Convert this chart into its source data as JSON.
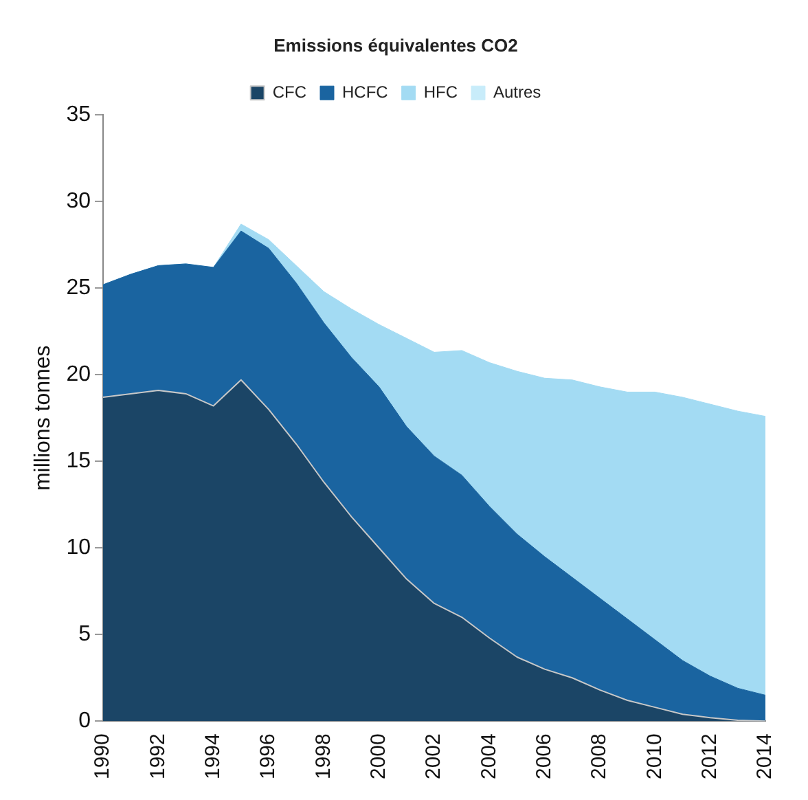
{
  "chart_data": {
    "type": "area",
    "title": "Emissions équivalentes CO2",
    "ylabel": "millions tonnes",
    "categories": [
      "1990",
      null,
      "1992",
      null,
      "1994",
      null,
      "1996",
      null,
      "1998",
      null,
      "2000",
      null,
      "2002",
      null,
      "2004",
      null,
      "2006",
      null,
      "2008",
      null,
      "2010",
      null,
      "2012",
      null,
      "2014"
    ],
    "stacked": true,
    "series": [
      {
        "name": "CFC",
        "color": "#1b4566",
        "values": [
          18.7,
          18.9,
          19.1,
          18.9,
          18.2,
          19.7,
          18.0,
          16.0,
          13.8,
          11.8,
          10.0,
          8.2,
          6.8,
          6.0,
          4.8,
          3.7,
          3.0,
          2.5,
          1.8,
          1.2,
          0.8,
          0.4,
          0.2,
          0.05,
          0
        ]
      },
      {
        "name": "HCFC",
        "color": "#1a64a0",
        "values": [
          6.5,
          6.9,
          7.2,
          7.5,
          8.0,
          8.6,
          9.3,
          9.3,
          9.2,
          9.2,
          9.3,
          8.8,
          8.5,
          8.2,
          7.6,
          7.1,
          6.5,
          5.8,
          5.3,
          4.7,
          3.9,
          3.1,
          2.4,
          1.85,
          1.5
        ]
      },
      {
        "name": "HFC",
        "color": "#a3dbf3",
        "values": [
          0,
          0,
          0,
          0,
          0,
          0.4,
          0.5,
          1.0,
          1.8,
          2.8,
          3.6,
          5.1,
          6.0,
          7.2,
          8.3,
          9.4,
          10.3,
          11.4,
          12.2,
          13.1,
          14.3,
          15.2,
          15.7,
          16.0,
          16.1
        ]
      },
      {
        "name": "Autres",
        "color": "#c8ecfa",
        "values": [
          null,
          null,
          null,
          null,
          null,
          null,
          null,
          null,
          null,
          null,
          null,
          null,
          null,
          null,
          null,
          null,
          null,
          null,
          null,
          null,
          null,
          null,
          null,
          null,
          null
        ]
      }
    ],
    "ylim": [
      0,
      35
    ],
    "yticks": [
      0,
      5,
      10,
      15,
      20,
      25,
      30,
      35
    ],
    "grid": false,
    "legend": "top",
    "marker": "none"
  }
}
